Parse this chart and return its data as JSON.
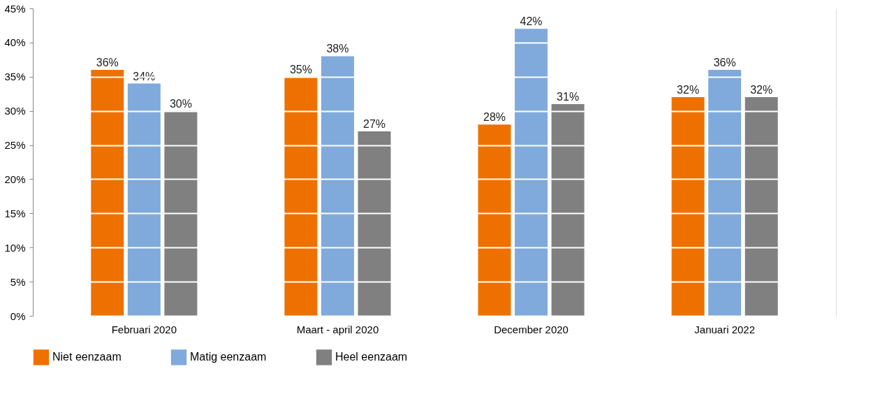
{
  "chart_data": {
    "type": "bar",
    "categories": [
      "Februari 2020",
      "Maart - april 2020",
      "December 2020",
      "Januari 2022"
    ],
    "series": [
      {
        "name": "Niet eenzaam",
        "color": "#ee7100",
        "values": [
          36,
          35,
          28,
          32
        ],
        "value_labels": [
          "36%",
          "35%",
          "28%",
          "32%"
        ]
      },
      {
        "name": "Matig eenzaam",
        "color": "#7faadb",
        "values": [
          34,
          38,
          42,
          36
        ],
        "value_labels": [
          "34%",
          "38%",
          "42%",
          "36%"
        ]
      },
      {
        "name": "Heel eenzaam",
        "color": "#808080",
        "values": [
          30,
          27,
          31,
          32
        ],
        "value_labels": [
          "30%",
          "27%",
          "31%",
          "32%"
        ]
      }
    ],
    "ylim": [
      0,
      45
    ],
    "yticks": [
      {
        "value": 0,
        "label": "0%"
      },
      {
        "value": 5,
        "label": "5%"
      },
      {
        "value": 10,
        "label": "10%"
      },
      {
        "value": 15,
        "label": "15%"
      },
      {
        "value": 20,
        "label": "20%"
      },
      {
        "value": 25,
        "label": "25%"
      },
      {
        "value": 30,
        "label": "30%"
      },
      {
        "value": 35,
        "label": "35%"
      },
      {
        "value": 40,
        "label": "40%"
      },
      {
        "value": 45,
        "label": "45%"
      }
    ],
    "grid": "y",
    "legend": "bottom left"
  }
}
